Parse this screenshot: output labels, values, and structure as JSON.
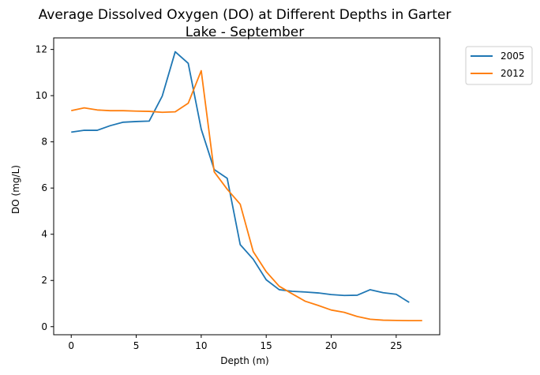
{
  "chart_data": {
    "type": "line",
    "title_line1": "Average Dissolved Oxygen (DO) at Different Depths in Garter",
    "title_line2": "Lake - September",
    "xlabel": "Depth (m)",
    "ylabel": "DO (mg/L)",
    "xlim": [
      -1.35,
      28.35
    ],
    "ylim": [
      -0.35,
      12.5
    ],
    "xticks": [
      0,
      5,
      10,
      15,
      20,
      25
    ],
    "yticks": [
      0,
      2,
      4,
      6,
      8,
      10,
      12
    ],
    "grid": false,
    "legend_position": "outside-top-right",
    "series": [
      {
        "name": "2005",
        "color": "#1f77b4",
        "x": [
          0,
          1,
          2,
          3,
          4,
          5,
          6,
          7,
          8,
          9,
          10,
          11,
          12,
          13,
          14,
          15,
          16,
          17,
          18,
          19,
          20,
          21,
          22,
          23,
          24,
          25,
          26
        ],
        "y": [
          8.42,
          8.5,
          8.5,
          8.7,
          8.85,
          8.88,
          8.9,
          9.98,
          11.9,
          11.4,
          8.55,
          6.8,
          6.42,
          3.55,
          2.92,
          2.03,
          1.6,
          1.53,
          1.5,
          1.46,
          1.39,
          1.35,
          1.36,
          1.6,
          1.47,
          1.4,
          1.05
        ]
      },
      {
        "name": "2012",
        "color": "#ff7f0e",
        "x": [
          0,
          1,
          2,
          3,
          4,
          5,
          6,
          7,
          8,
          9,
          10,
          11,
          12,
          13,
          14,
          15,
          16,
          17,
          18,
          19,
          20,
          21,
          22,
          23,
          24,
          25,
          26,
          27
        ],
        "y": [
          9.35,
          9.47,
          9.38,
          9.35,
          9.35,
          9.33,
          9.32,
          9.28,
          9.3,
          9.67,
          11.08,
          6.7,
          5.95,
          5.3,
          3.25,
          2.38,
          1.75,
          1.42,
          1.1,
          0.92,
          0.72,
          0.62,
          0.44,
          0.32,
          0.28,
          0.27,
          0.26,
          0.26
        ]
      }
    ]
  }
}
